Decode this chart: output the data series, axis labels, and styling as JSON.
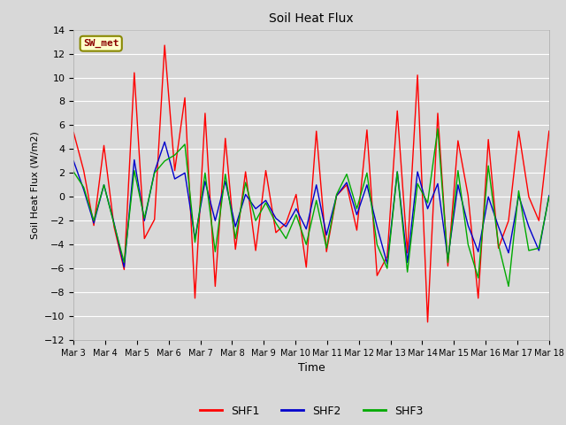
{
  "title": "Soil Heat Flux",
  "xlabel": "Time",
  "ylabel": "Soil Heat Flux (W/m2)",
  "ylim": [
    -12,
    14
  ],
  "yticks": [
    -12,
    -10,
    -8,
    -6,
    -4,
    -2,
    0,
    2,
    4,
    6,
    8,
    10,
    12,
    14
  ],
  "annotation": "SW_met",
  "annotation_color": "#8B0000",
  "annotation_bg": "#FFFFCC",
  "fig_facecolor": "#D8D8D8",
  "axes_facecolor": "#D8D8D8",
  "grid_color": "#FFFFFF",
  "series_colors": [
    "#FF0000",
    "#0000CC",
    "#00AA00"
  ],
  "series_names": [
    "SHF1",
    "SHF2",
    "SHF3"
  ],
  "x_tick_labels": [
    "Mar 3",
    "Mar 4",
    "Mar 5",
    "Mar 6",
    "Mar 7",
    "Mar 8",
    "Mar 9",
    "Mar 10",
    "Mar 11",
    "Mar 12",
    "Mar 13",
    "Mar 14",
    "Mar 15",
    "Mar 16",
    "Mar 17",
    "Mar 18"
  ],
  "SHF1": [
    5.4,
    2.2,
    -2.4,
    4.3,
    -2.5,
    -6.1,
    10.4,
    -3.5,
    -1.9,
    12.7,
    2.2,
    8.3,
    -8.5,
    7.0,
    -7.5,
    4.9,
    -4.4,
    2.1,
    -4.5,
    2.2,
    -3.0,
    -2.2,
    0.2,
    -5.9,
    5.5,
    -4.6,
    0.1,
    1.0,
    -2.8,
    5.6,
    -6.6,
    -5.0,
    7.2,
    -4.7,
    10.2,
    -10.5,
    7.0,
    -5.8,
    4.7,
    0.1,
    -8.5,
    4.8,
    -4.3,
    -2.0,
    5.5,
    0.0,
    -2.0,
    5.5
  ],
  "SHF2": [
    3.0,
    0.6,
    -2.2,
    1.0,
    -2.2,
    -5.9,
    3.1,
    -2.0,
    2.1,
    4.6,
    1.5,
    2.0,
    -3.5,
    1.3,
    -2.0,
    1.3,
    -2.5,
    0.2,
    -1.0,
    -0.3,
    -1.8,
    -2.5,
    -1.0,
    -2.7,
    1.0,
    -3.2,
    0.1,
    1.2,
    -1.5,
    1.0,
    -2.5,
    -5.6,
    2.1,
    -5.5,
    2.1,
    -1.0,
    1.1,
    -5.2,
    1.0,
    -2.4,
    -4.6,
    0.0,
    -2.5,
    -4.7,
    0.1,
    -2.5,
    -4.5,
    0.1
  ],
  "SHF3": [
    2.1,
    0.8,
    -2.0,
    1.0,
    -2.3,
    -5.5,
    2.2,
    -1.8,
    2.0,
    3.0,
    3.5,
    4.4,
    -3.8,
    2.0,
    -4.6,
    1.9,
    -3.5,
    1.2,
    -2.0,
    -0.5,
    -2.2,
    -3.5,
    -1.5,
    -4.0,
    -0.3,
    -4.3,
    0.2,
    1.9,
    -1.0,
    2.0,
    -4.0,
    -6.0,
    2.1,
    -6.3,
    1.1,
    -0.5,
    5.7,
    -5.5,
    2.2,
    -4.0,
    -6.8,
    2.6,
    -4.0,
    -7.5,
    0.5,
    -4.5,
    -4.3,
    0.0
  ]
}
